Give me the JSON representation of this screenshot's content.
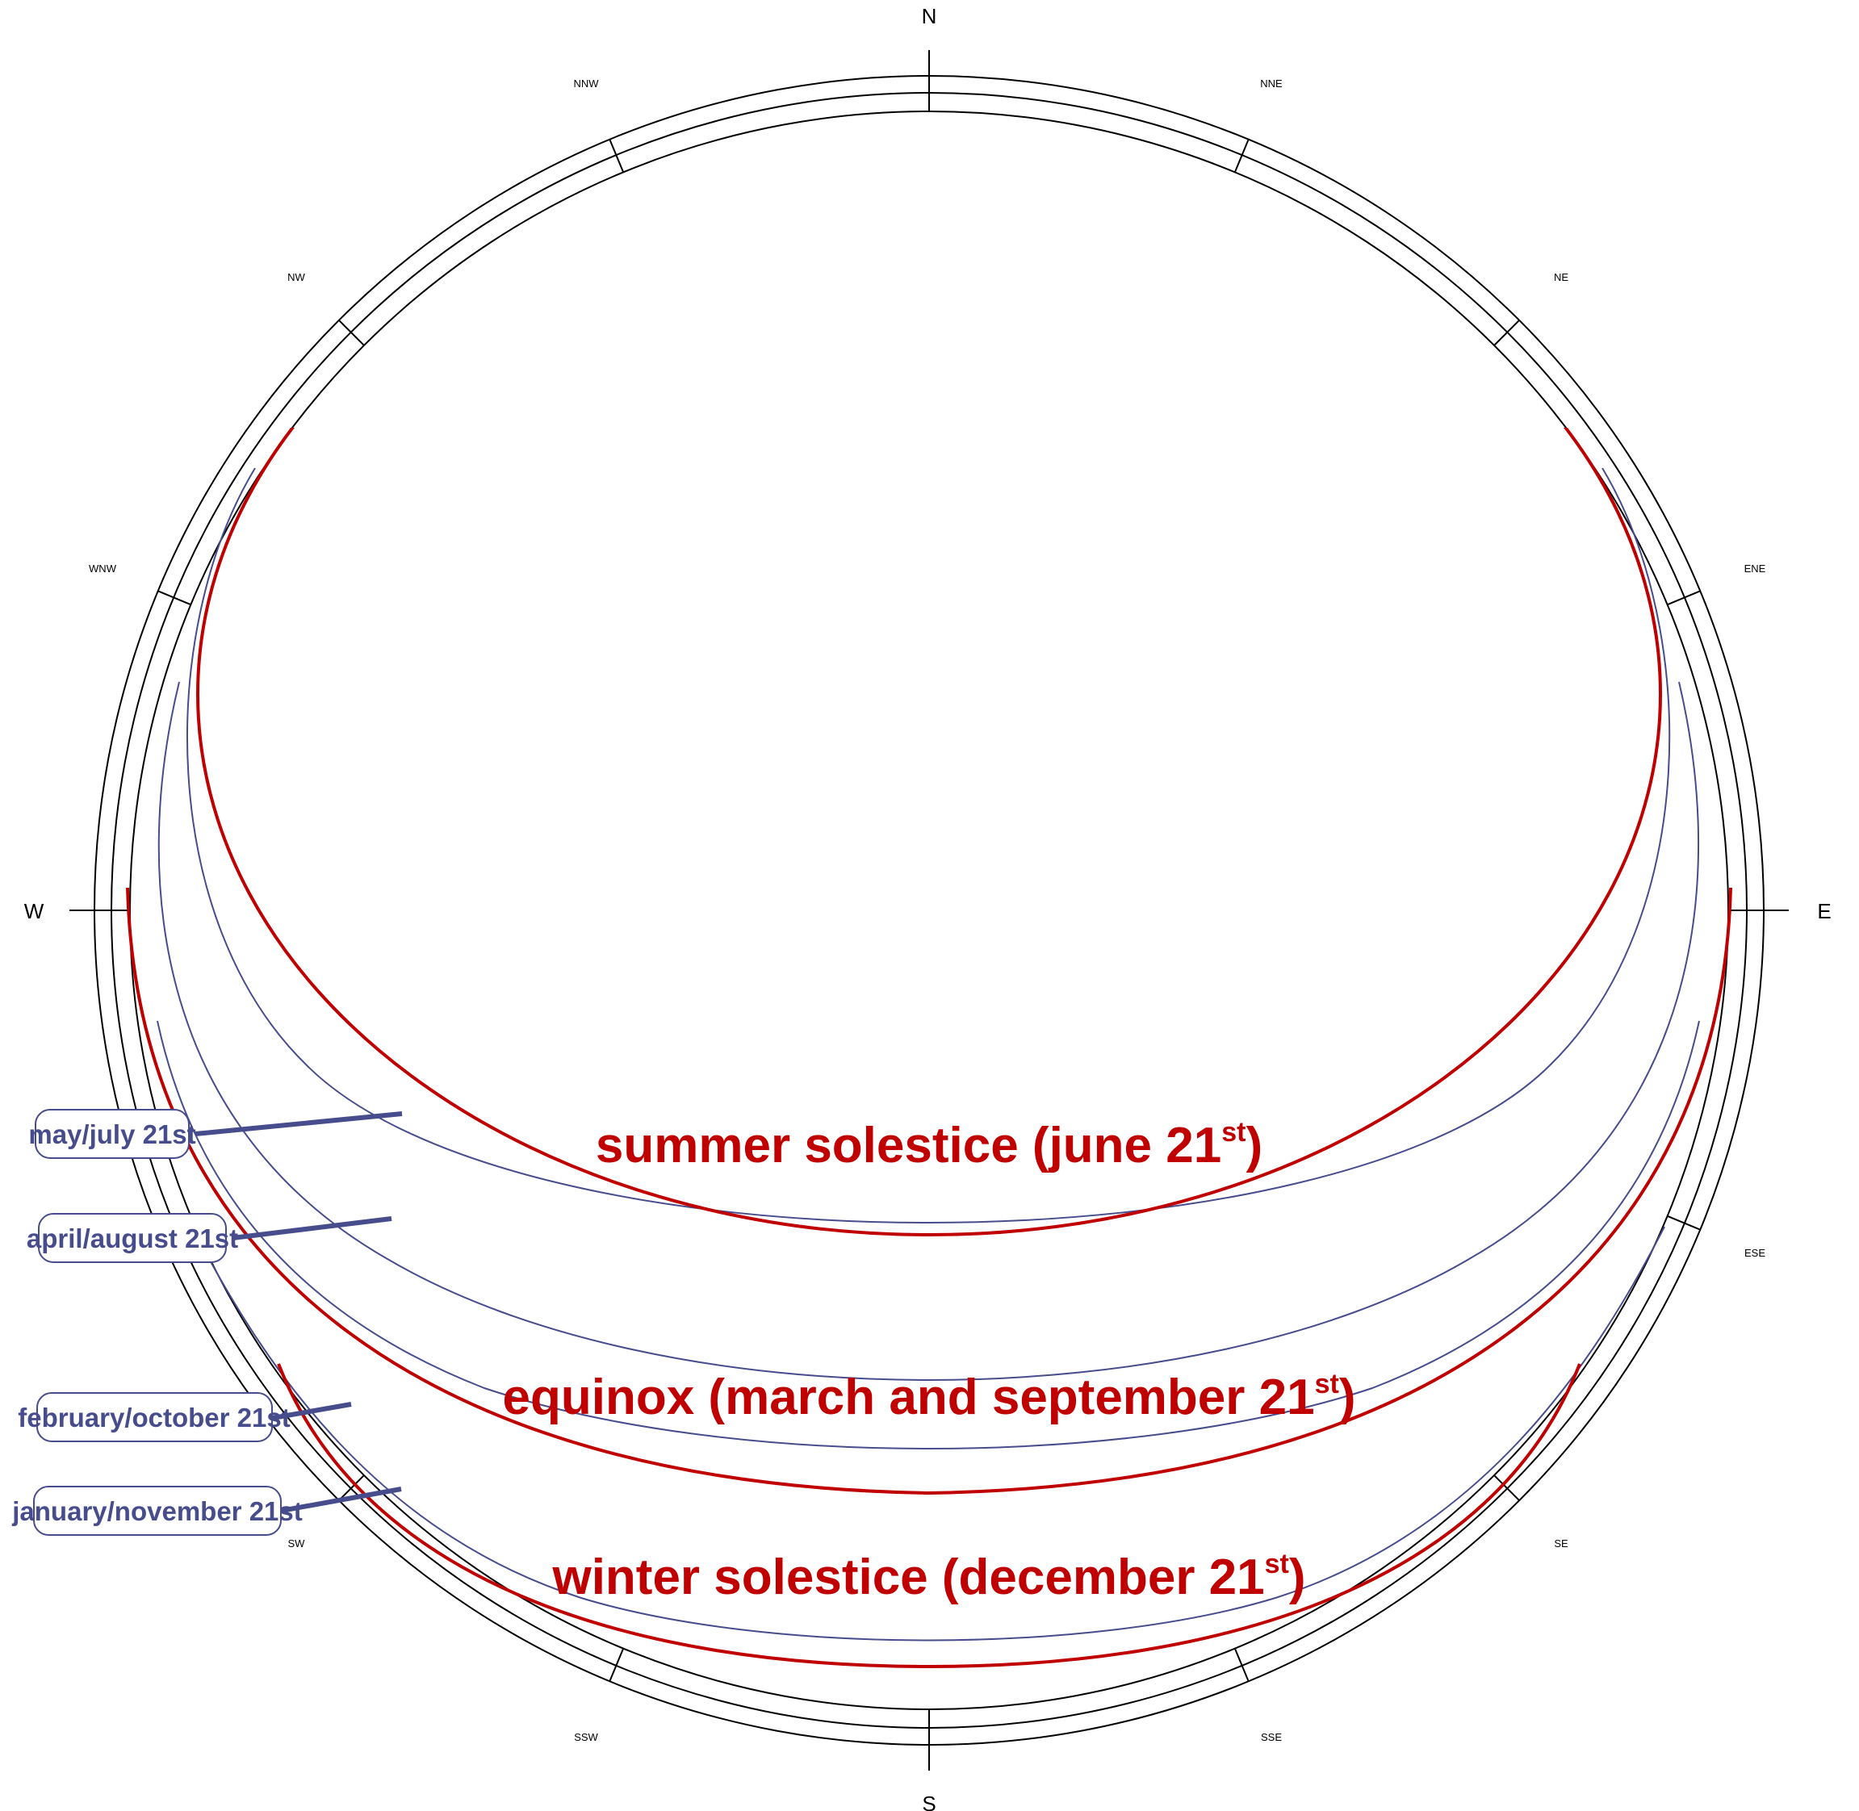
{
  "compass": {
    "N": "N",
    "S": "S",
    "E": "E",
    "W": "W",
    "NNE": "NNE",
    "NE": "NE",
    "ENE": "ENE",
    "ESE": "ESE",
    "SE": "SE",
    "SSE": "SSE",
    "SSW": "SSW",
    "SW": "SW",
    "WNW": "WNW",
    "NW": "NW",
    "NNW": "NNW"
  },
  "paths": {
    "summer": {
      "label": "summer solestice (june 21",
      "sup": "st",
      "close": ")"
    },
    "equinox": {
      "label": "equinox (march and september 21",
      "sup": "st",
      "close": ")"
    },
    "winter": {
      "label": "winter solestice (december 21",
      "sup": "st",
      "close": ")"
    }
  },
  "callouts": {
    "may_july": "may/july 21st",
    "april_august": "april/august 21st",
    "february_october": "february/october 21st",
    "january_november": "january/november 21st"
  },
  "colors": {
    "solstice_equinox": "#c00000",
    "monthly": "#474c8c",
    "rings": "#000000"
  }
}
